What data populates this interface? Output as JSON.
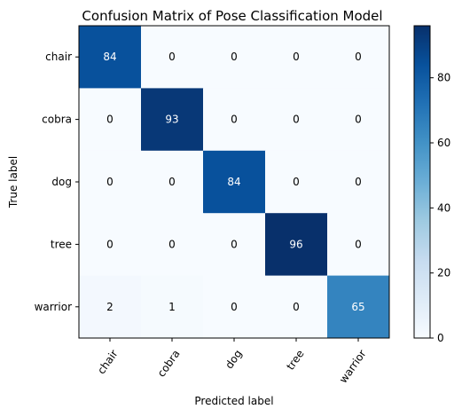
{
  "chart_data": {
    "type": "heatmap",
    "title": "Confusion Matrix of Pose Classification Model",
    "xlabel": "Predicted label",
    "ylabel": "True label",
    "x_categories": [
      "chair",
      "cobra",
      "dog",
      "tree",
      "warrior"
    ],
    "y_categories": [
      "chair",
      "cobra",
      "dog",
      "tree",
      "warrior"
    ],
    "matrix": [
      [
        84,
        0,
        0,
        0,
        0
      ],
      [
        0,
        93,
        0,
        0,
        0
      ],
      [
        0,
        0,
        84,
        0,
        0
      ],
      [
        0,
        0,
        0,
        96,
        0
      ],
      [
        2,
        1,
        0,
        0,
        65
      ]
    ],
    "color_scale": {
      "name": "Blues",
      "min": 0,
      "max": 96,
      "low_color": "#f7fbff",
      "high_color": "#08306b"
    },
    "colorbar_ticks": [
      0,
      20,
      40,
      60,
      80
    ],
    "text_color_dark_bg": "#ffffff",
    "text_color_light_bg": "#000000"
  }
}
